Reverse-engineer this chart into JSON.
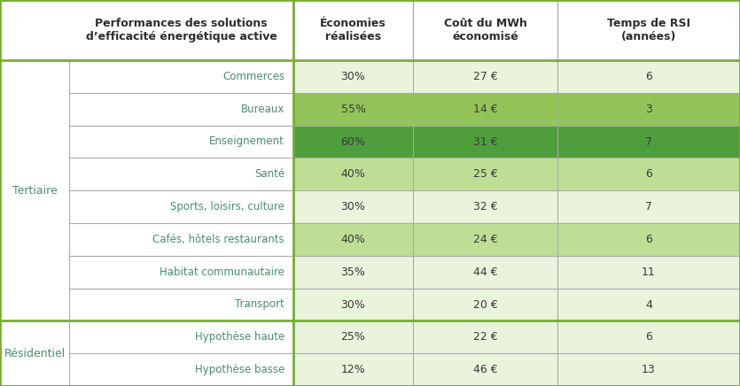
{
  "col_headers": [
    "Performances des solutions\nd’efficacité énergétique active",
    "Économies\nréalisées",
    "Coût du MWh\néconomisé",
    "Temps de RSI\n(années)"
  ],
  "groups": [
    {
      "label": "Tertiaire",
      "rows": [
        {
          "name": "Commerces",
          "economies": "30%",
          "cout": "27 €",
          "rsi": "6",
          "color": "#eaf3dc"
        },
        {
          "name": "Bureaux",
          "economies": "55%",
          "cout": "14 €",
          "rsi": "3",
          "color": "#92c45a"
        },
        {
          "name": "Enseignement",
          "economies": "60%",
          "cout": "31 €",
          "rsi": "7",
          "color": "#4e9e3c"
        },
        {
          "name": "Santé",
          "economies": "40%",
          "cout": "25 €",
          "rsi": "6",
          "color": "#bede96"
        },
        {
          "name": "Sports, loisirs, culture",
          "economies": "30%",
          "cout": "32 €",
          "rsi": "7",
          "color": "#eaf3dc"
        },
        {
          "name": "Cafés, hôtels restaurants",
          "economies": "40%",
          "cout": "24 €",
          "rsi": "6",
          "color": "#bede96"
        },
        {
          "name": "Habitat communautaire",
          "economies": "35%",
          "cout": "44 €",
          "rsi": "11",
          "color": "#eaf3dc"
        },
        {
          "name": "Transport",
          "economies": "30%",
          "cout": "20 €",
          "rsi": "4",
          "color": "#eaf3dc"
        }
      ]
    },
    {
      "label": "Résidentiel",
      "rows": [
        {
          "name": "Hypothèse haute",
          "economies": "25%",
          "cout": "22 €",
          "rsi": "6",
          "color": "#eaf3dc"
        },
        {
          "name": "Hypothèse basse",
          "economies": "12%",
          "cout": "46 €",
          "rsi": "13",
          "color": "#eaf3dc"
        }
      ]
    }
  ],
  "header_bg": "#ffffff",
  "header_text_color": "#2d2d2d",
  "group_label_color": "#4a8c6e",
  "row_name_color": "#4a8c6e",
  "data_text_color": "#3a3a3a",
  "border_color": "#aaaaaa",
  "thick_border_color": "#7aab3a",
  "background": "#ffffff"
}
